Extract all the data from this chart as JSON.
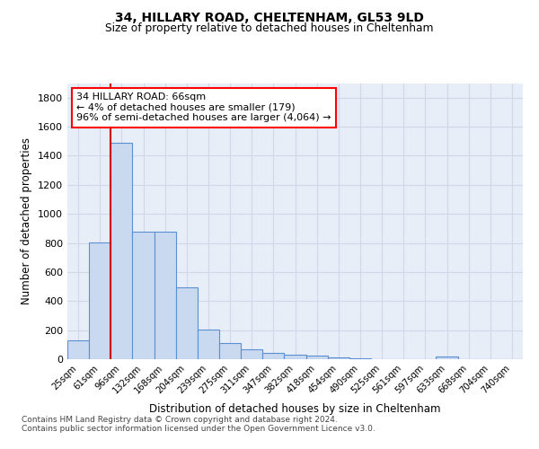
{
  "title1": "34, HILLARY ROAD, CHELTENHAM, GL53 9LD",
  "title2": "Size of property relative to detached houses in Cheltenham",
  "xlabel": "Distribution of detached houses by size in Cheltenham",
  "ylabel": "Number of detached properties",
  "categories": [
    "25sqm",
    "61sqm",
    "96sqm",
    "132sqm",
    "168sqm",
    "204sqm",
    "239sqm",
    "275sqm",
    "311sqm",
    "347sqm",
    "382sqm",
    "418sqm",
    "454sqm",
    "490sqm",
    "525sqm",
    "561sqm",
    "597sqm",
    "633sqm",
    "668sqm",
    "704sqm",
    "740sqm"
  ],
  "values": [
    130,
    805,
    1490,
    880,
    880,
    495,
    205,
    110,
    68,
    45,
    30,
    22,
    10,
    5,
    3,
    2,
    1,
    20,
    0,
    0,
    0
  ],
  "bar_color": "#c9d9f0",
  "bar_edge_color": "#5b8fd4",
  "red_line_index": 1,
  "annotation_text": "34 HILLARY ROAD: 66sqm\n← 4% of detached houses are smaller (179)\n96% of semi-detached houses are larger (4,064) →",
  "annotation_box_color": "white",
  "annotation_border_color": "red",
  "red_line_color": "#cc0000",
  "footer_text": "Contains HM Land Registry data © Crown copyright and database right 2024.\nContains public sector information licensed under the Open Government Licence v3.0.",
  "ylim": [
    0,
    1900
  ],
  "yticks": [
    0,
    200,
    400,
    600,
    800,
    1000,
    1200,
    1400,
    1600,
    1800
  ],
  "bg_color": "#e8eef8",
  "fig_bg_color": "white",
  "grid_color": "#d0d8e8"
}
